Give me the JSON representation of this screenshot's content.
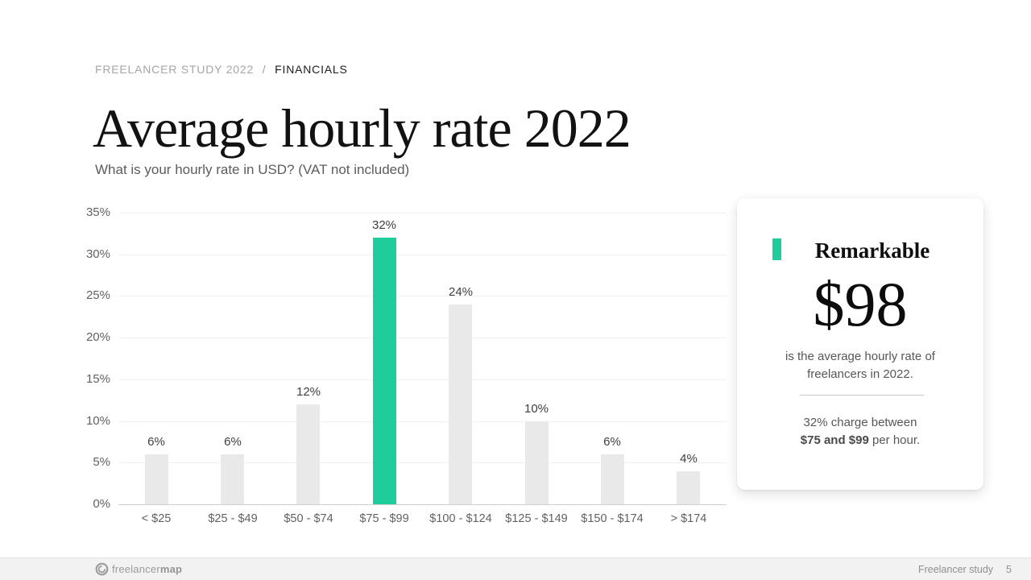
{
  "breadcrumb": {
    "section": "FREELANCER STUDY 2022",
    "separator": "/",
    "current": "FINANCIALS"
  },
  "header": {
    "title": "Average hourly rate 2022",
    "subtitle": "What is your hourly rate in USD? (VAT not included)"
  },
  "chart_data": {
    "type": "bar",
    "categories": [
      "< $25",
      "$25 - $49",
      "$50 - $74",
      "$75 - $99",
      "$100 - $124",
      "$125 - $149",
      "$150 - $174",
      "> $174"
    ],
    "values": [
      6,
      6,
      12,
      32,
      24,
      10,
      6,
      4
    ],
    "value_labels": [
      "6%",
      "6%",
      "12%",
      "32%",
      "24%",
      "10%",
      "6%",
      "4%"
    ],
    "highlight_index": 3,
    "y_ticks": [
      0,
      5,
      10,
      15,
      20,
      25,
      30,
      35
    ],
    "y_tick_labels": [
      "0%",
      "5%",
      "10%",
      "15%",
      "20%",
      "25%",
      "30%",
      "35%"
    ],
    "ylim": [
      0,
      35
    ],
    "grid": true,
    "legend": "none",
    "xlabel": "",
    "ylabel": "",
    "title": "Average hourly rate 2022"
  },
  "colors": {
    "accent": "#1fcd9c",
    "bar": "#e9e9e9",
    "gridline": "#f0f0f0",
    "axis_line": "#cfcfcf"
  },
  "card": {
    "title": "Remarkable",
    "big_value": "$98",
    "description_line1": "is the average hourly rate of",
    "description_line2": "freelancers in 2022.",
    "note_line1": "32% charge between",
    "note_bold": "$75 and $99",
    "note_rest": " per hour."
  },
  "footer": {
    "logo_regular": "freelancer",
    "logo_bold": "map",
    "right_label": "Freelancer study",
    "page_number": "5"
  }
}
